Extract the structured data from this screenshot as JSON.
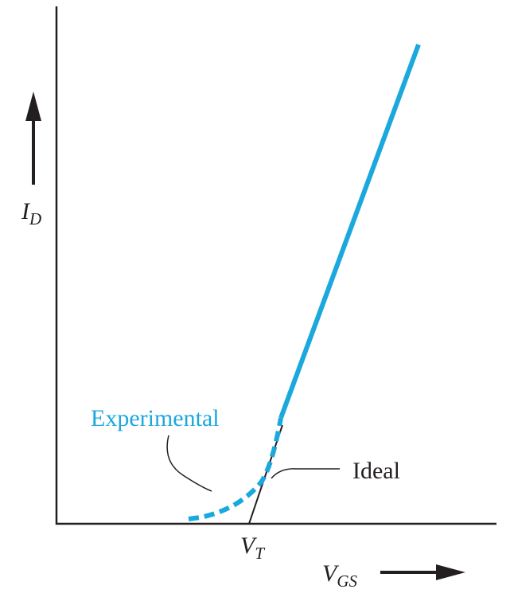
{
  "colors": {
    "axis": "#231f20",
    "experimental": "#1ba8dd",
    "ideal": "#231f20",
    "text": "#231f20"
  },
  "labels": {
    "experimental": "Experimental",
    "ideal": "Ideal",
    "id_main": "I",
    "id_sub": "D",
    "vt_main": "V",
    "vt_sub": "T",
    "vgs_main": "V",
    "vgs_sub": "GS"
  },
  "icons": {
    "id_axis_arrow": "arrow-up-icon",
    "vgs_axis_arrow": "arrow-right-icon"
  }
}
